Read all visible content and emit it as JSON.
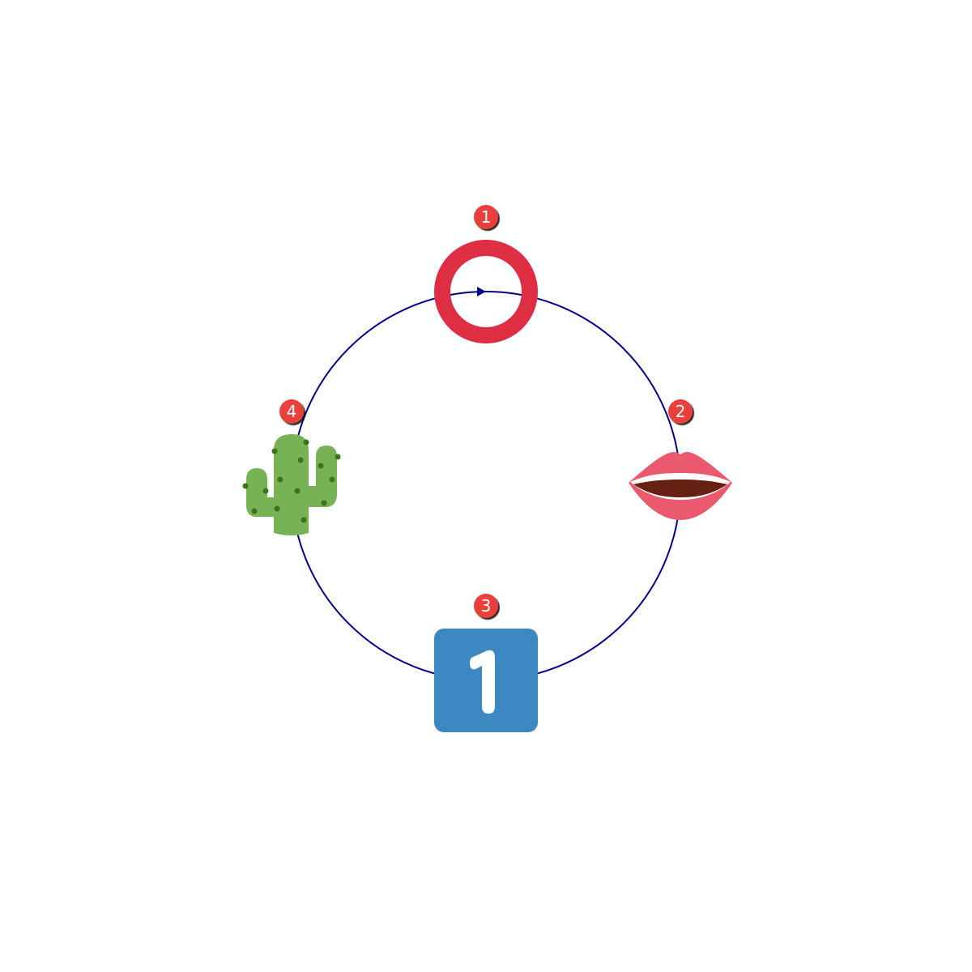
{
  "diagram": {
    "type": "cycle",
    "direction": "clockwise",
    "ring_color": "#00008b",
    "badge_color": "#e8403e",
    "nodes": [
      {
        "order": "1",
        "icon": "heavy-large-circle-icon",
        "color": "#dd2e44"
      },
      {
        "order": "2",
        "icon": "mouth-icon",
        "color": "#ea596e"
      },
      {
        "order": "3",
        "icon": "keycap-1-icon",
        "color": "#3b88c3"
      },
      {
        "order": "4",
        "icon": "cactus-icon",
        "color": "#77b255"
      }
    ]
  }
}
